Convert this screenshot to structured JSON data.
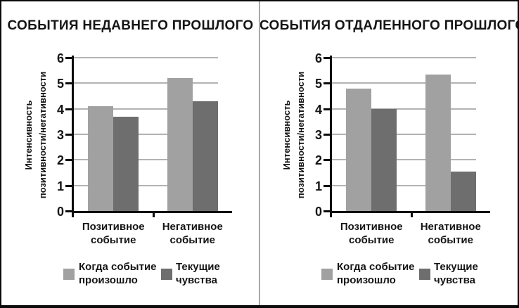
{
  "frame": {
    "background": "#ffffff",
    "border_color": "#0b0b0b",
    "divider_color": "#a8a8a8"
  },
  "colors": {
    "series_when_occurred": "#a1a1a1",
    "series_current_feelings": "#6e6e6e",
    "gridline": "#b3b3b3",
    "axis": "#0d0d0d",
    "text": "#151515"
  },
  "chart_data": [
    {
      "type": "bar",
      "title": "СОБЫТИЯ НЕДАВНЕГО ПРОШЛОГО",
      "categories": [
        "Позитивное событие",
        "Негативное событие"
      ],
      "category_label_lines": [
        [
          "Позитивное",
          "событие"
        ],
        [
          "Негативное",
          "событие"
        ]
      ],
      "series": [
        {
          "name": "Когда событие произошло",
          "label_lines": [
            "Когда событие",
            "произошло"
          ],
          "color": "#a1a1a1",
          "values": [
            4.1,
            5.2
          ]
        },
        {
          "name": "Текущие чувства",
          "label_lines": [
            "Текущие",
            "чувства"
          ],
          "color": "#6e6e6e",
          "values": [
            3.7,
            4.3
          ]
        }
      ],
      "xlabel": "",
      "ylabel": "Интенсивность позитивности/негативности",
      "ylabel_lines": [
        "Интенсивность",
        "позитивности/негативности"
      ],
      "ylim": [
        0,
        6
      ],
      "yticks": [
        0,
        1,
        2,
        3,
        4,
        5,
        6
      ],
      "grid": true,
      "legend_position": "bottom"
    },
    {
      "type": "bar",
      "title": "СОБЫТИЯ ОТДАЛЕННОГО ПРОШЛОГО",
      "categories": [
        "Позитивное событие",
        "Негативное событие"
      ],
      "category_label_lines": [
        [
          "Позитивное",
          "событие"
        ],
        [
          "Негативное",
          "событие"
        ]
      ],
      "series": [
        {
          "name": "Когда событие произошло",
          "label_lines": [
            "Когда событие",
            "произошло"
          ],
          "color": "#a1a1a1",
          "values": [
            4.8,
            5.35
          ]
        },
        {
          "name": "Текущие чувства",
          "label_lines": [
            "Текущие",
            "чувства"
          ],
          "color": "#6e6e6e",
          "values": [
            4.0,
            1.55
          ]
        }
      ],
      "xlabel": "",
      "ylabel": "Интенсивность позитивности/негативности",
      "ylabel_lines": [
        "Интенсивность",
        "позитивности/негативности"
      ],
      "ylim": [
        0,
        6
      ],
      "yticks": [
        0,
        1,
        2,
        3,
        4,
        5,
        6
      ],
      "grid": true,
      "legend_position": "bottom"
    }
  ]
}
